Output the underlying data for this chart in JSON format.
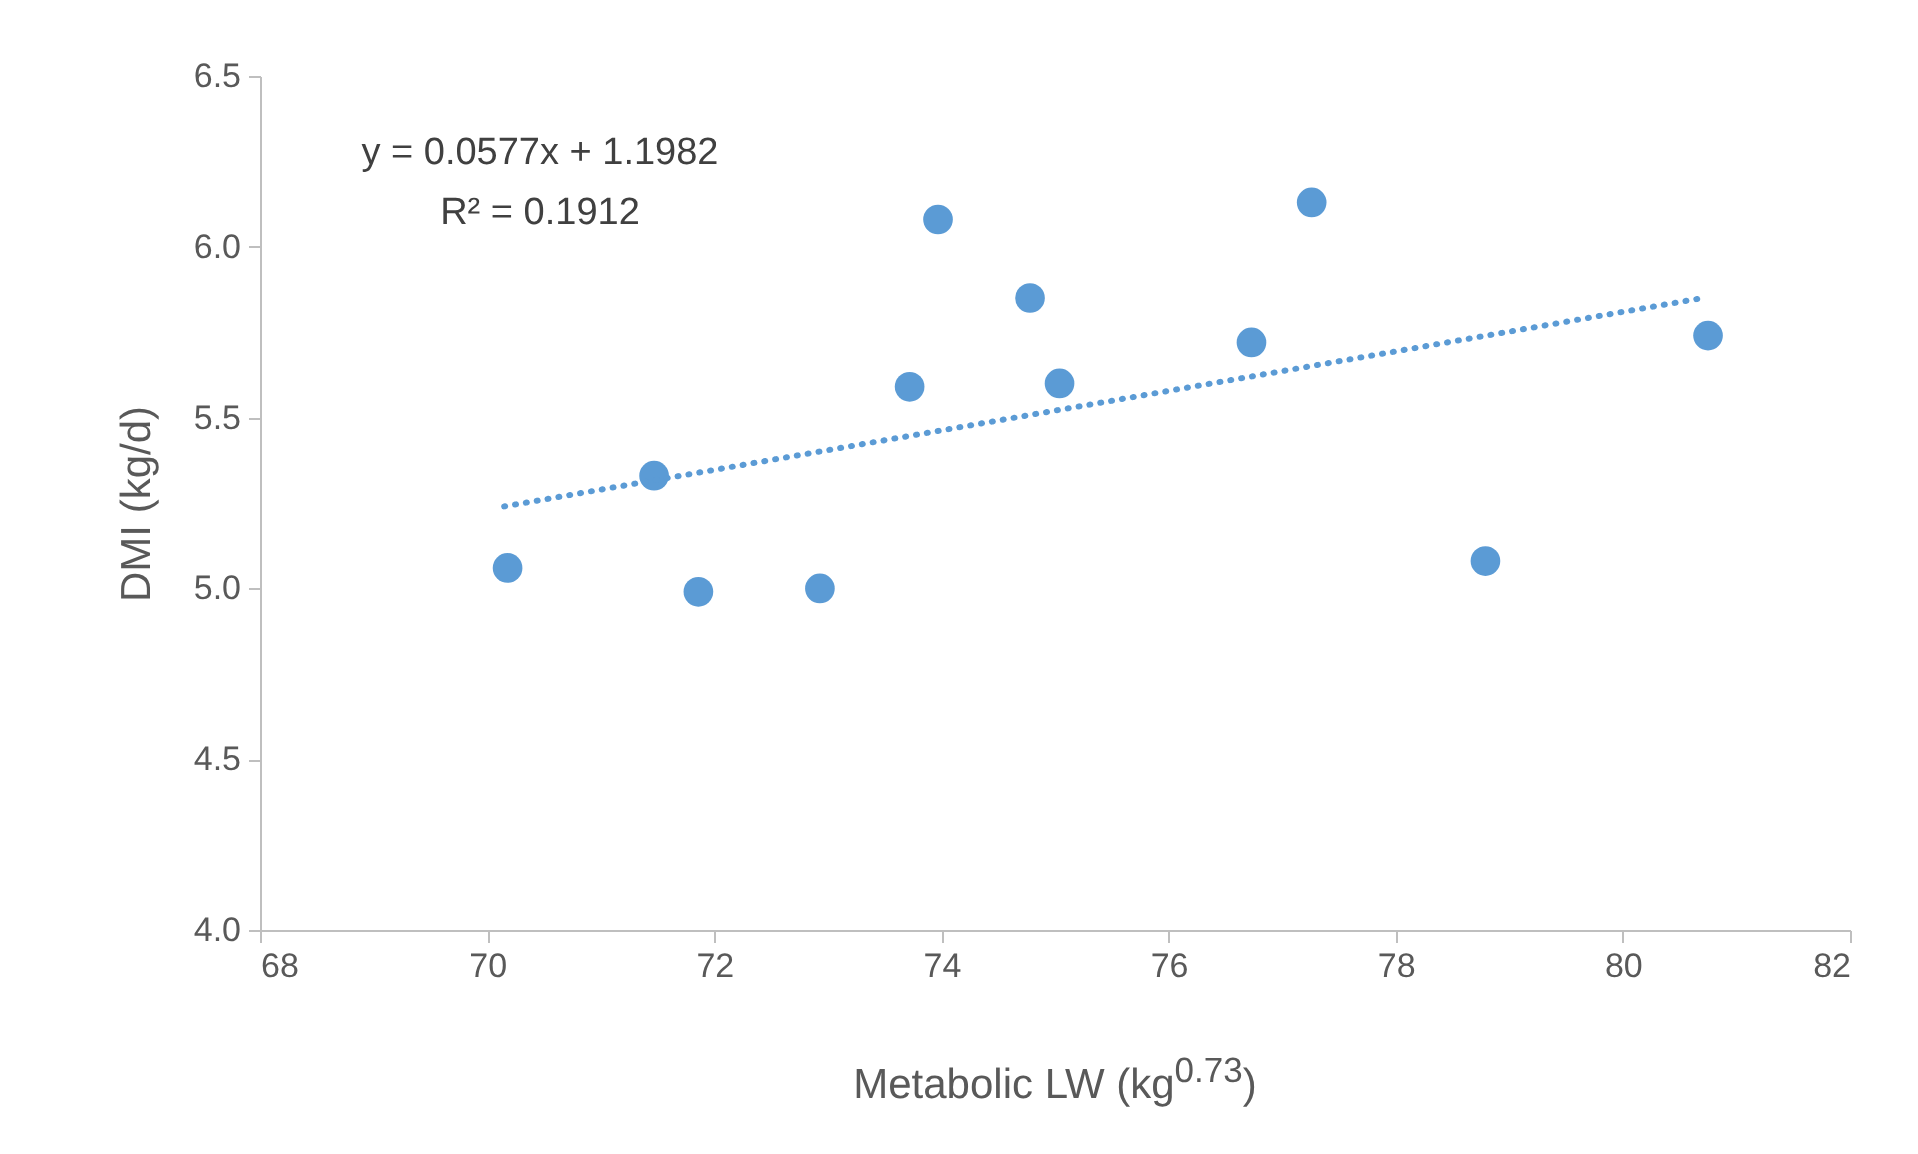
{
  "chart_data": {
    "type": "scatter",
    "xlabel": "Metabolic LW (kg$^{0.73}$)",
    "ylabel": "DMI (kg/d)",
    "annotations": [
      "y = 0.0577x + 1.1982",
      "R² = 0.1912"
    ],
    "xlim": [
      68,
      82
    ],
    "xticks": [
      68,
      70,
      72,
      74,
      76,
      78,
      80,
      82
    ],
    "ylim": [
      4.0,
      6.5
    ],
    "yticks": [
      {
        "value": 4,
        "label": "4.0"
      },
      {
        "value": 4.5,
        "label": "4.5"
      },
      {
        "value": 5,
        "label": "5.0"
      },
      {
        "value": 5.5,
        "label": "5.5"
      },
      {
        "value": 6,
        "label": "6.0"
      },
      {
        "value": 6.5,
        "label": "6.5"
      }
    ],
    "grid": false,
    "marker": "circle",
    "series": [
      {
        "color": "#5b9bd5",
        "x": [
          70.18,
          71.47,
          71.86,
          72.93,
          73.72,
          73.97,
          74.78,
          75.04,
          76.73,
          77.26,
          78.79,
          80.75
        ],
        "values": [
          5.06,
          5.33,
          4.99,
          5.0,
          5.59,
          6.08,
          5.85,
          5.6,
          5.72,
          6.13,
          5.08,
          5.74
        ]
      },
      {
        "type": "line",
        "color": "#5b9bd5",
        "line_style": "dotted",
        "marker": "none",
        "x": [
          70.15,
          80.7
        ],
        "values": [
          5.24,
          5.85
        ]
      }
    ]
  }
}
